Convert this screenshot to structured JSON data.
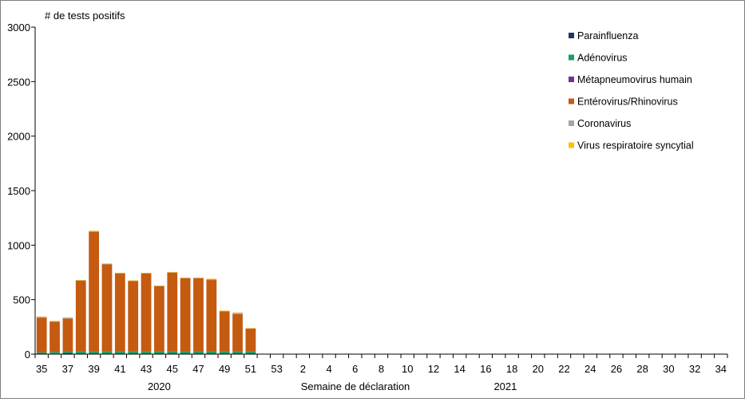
{
  "chart_data": {
    "type": "bar",
    "stacked": true,
    "title": "",
    "ylabel": "# de tests positifs",
    "xlabel": "Semaine de déclaration",
    "ylim": [
      0,
      3000
    ],
    "yticks": [
      0,
      500,
      1000,
      1500,
      2000,
      2500,
      3000
    ],
    "grid": false,
    "legend_position": "top-right",
    "year_labels": [
      {
        "label": "2020",
        "from_week": "35",
        "to_week": "53"
      },
      {
        "label": "2021",
        "from_week": "1",
        "to_week": "34"
      }
    ],
    "categories": [
      "35",
      "36",
      "37",
      "38",
      "39",
      "40",
      "41",
      "42",
      "43",
      "44",
      "45",
      "46",
      "47",
      "48",
      "49",
      "50",
      "51",
      "52",
      "53",
      "1",
      "2",
      "3",
      "4",
      "5",
      "6",
      "7",
      "8",
      "9",
      "10",
      "11",
      "12",
      "13",
      "14",
      "15",
      "16",
      "17",
      "18",
      "19",
      "20",
      "21",
      "22",
      "23",
      "24",
      "25",
      "26",
      "27",
      "28",
      "29",
      "30",
      "31",
      "32",
      "33",
      "34"
    ],
    "tick_labels": [
      "35",
      "37",
      "39",
      "41",
      "43",
      "45",
      "47",
      "49",
      "51",
      "53",
      "2",
      "4",
      "6",
      "8",
      "10",
      "12",
      "14",
      "16",
      "18",
      "20",
      "22",
      "24",
      "26",
      "28",
      "30",
      "32",
      "34"
    ],
    "series": [
      {
        "name": "Parainfluenza",
        "color": "#1f3864",
        "values": [
          2,
          5,
          10,
          3,
          2,
          2,
          2,
          2,
          2,
          2,
          2,
          2,
          2,
          2,
          2,
          2,
          2,
          null,
          null,
          null,
          null,
          null,
          null,
          null,
          null,
          null,
          null,
          null,
          null,
          null,
          null,
          null,
          null,
          null,
          null,
          null,
          null,
          null,
          null,
          null,
          null,
          null,
          null,
          null,
          null,
          null,
          null,
          null,
          null,
          null,
          null,
          null,
          null
        ]
      },
      {
        "name": "Adénovirus",
        "color": "#1a9f64",
        "values": [
          15,
          15,
          15,
          25,
          25,
          25,
          25,
          25,
          25,
          22,
          25,
          25,
          25,
          25,
          25,
          25,
          22,
          null,
          null,
          null,
          null,
          null,
          null,
          null,
          null,
          null,
          null,
          null,
          null,
          null,
          null,
          null,
          null,
          null,
          null,
          null,
          null,
          null,
          null,
          null,
          null,
          null,
          null,
          null,
          null,
          null,
          null,
          null,
          null,
          null,
          null,
          null,
          null
        ]
      },
      {
        "name": "Métapneumovirus humain",
        "color": "#7030a0",
        "values": [
          0,
          0,
          0,
          0,
          0,
          0,
          0,
          0,
          0,
          0,
          0,
          0,
          0,
          0,
          0,
          0,
          0,
          null,
          null,
          null,
          null,
          null,
          null,
          null,
          null,
          null,
          null,
          null,
          null,
          null,
          null,
          null,
          null,
          null,
          null,
          null,
          null,
          null,
          null,
          null,
          null,
          null,
          null,
          null,
          null,
          null,
          null,
          null,
          null,
          null,
          null,
          null,
          null
        ]
      },
      {
        "name": "Entérovirus/Rhinovirus",
        "color": "#c55a11",
        "values": [
          318,
          278,
          300,
          645,
          1095,
          798,
          713,
          643,
          712,
          598,
          720,
          668,
          668,
          653,
          365,
          340,
          210,
          null,
          null,
          null,
          null,
          null,
          null,
          null,
          null,
          null,
          null,
          null,
          null,
          null,
          null,
          null,
          null,
          null,
          null,
          null,
          null,
          null,
          null,
          null,
          null,
          null,
          null,
          null,
          null,
          null,
          null,
          null,
          null,
          null,
          null,
          null,
          null
        ]
      },
      {
        "name": "Coronavirus",
        "color": "#a5a5a5",
        "values": [
          8,
          5,
          10,
          5,
          8,
          5,
          5,
          5,
          5,
          5,
          5,
          5,
          5,
          10,
          5,
          12,
          3,
          null,
          null,
          null,
          null,
          null,
          null,
          null,
          null,
          null,
          null,
          null,
          null,
          null,
          null,
          null,
          null,
          null,
          null,
          null,
          null,
          null,
          null,
          null,
          null,
          null,
          null,
          null,
          null,
          null,
          null,
          null,
          null,
          null,
          null,
          null,
          null
        ]
      },
      {
        "name": "Virus respiratoire syncytial",
        "color": "#ffc000",
        "values": [
          2,
          2,
          2,
          2,
          2,
          2,
          2,
          2,
          2,
          2,
          2,
          2,
          2,
          2,
          2,
          3,
          2,
          null,
          null,
          null,
          null,
          null,
          null,
          null,
          null,
          null,
          null,
          null,
          null,
          null,
          null,
          null,
          null,
          null,
          null,
          null,
          null,
          null,
          null,
          null,
          null,
          null,
          null,
          null,
          null,
          null,
          null,
          null,
          null,
          null,
          null,
          null,
          null
        ]
      }
    ]
  }
}
